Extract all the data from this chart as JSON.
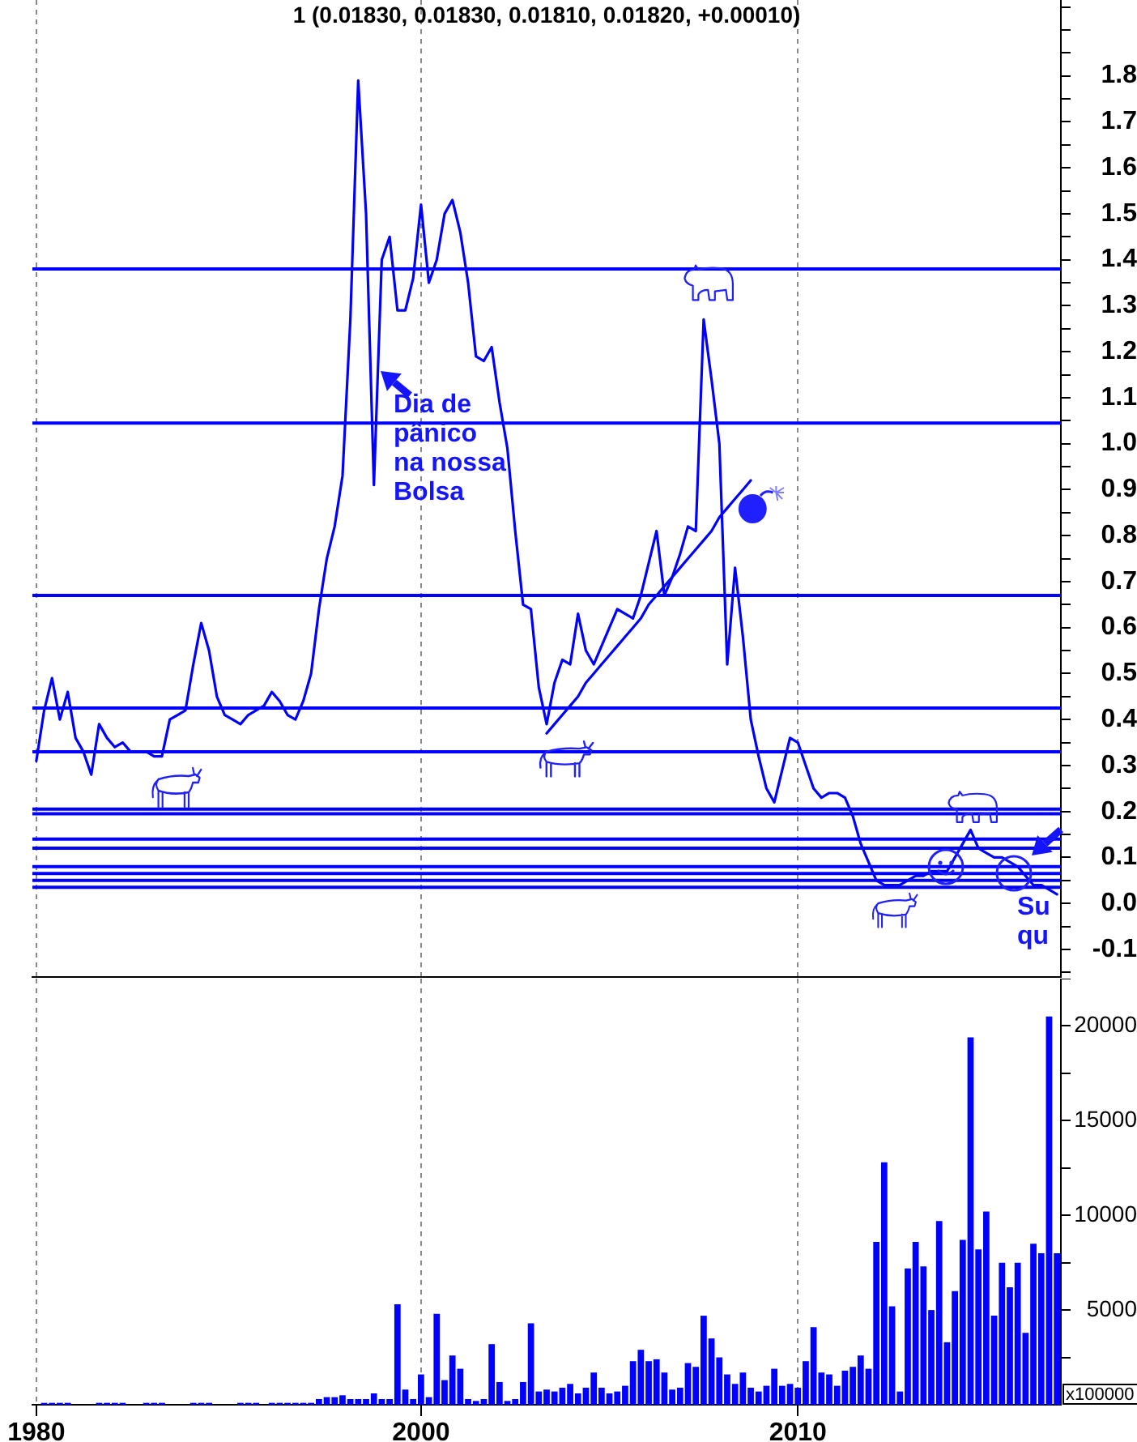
{
  "chart_data": [
    {
      "type": "line",
      "title": "1 (0.01830, 0.01830, 0.01810, 0.01820, +0.00010)",
      "categories": [
        "1980",
        null,
        null,
        null,
        null,
        null,
        null,
        null,
        null,
        null,
        null,
        null,
        null,
        null,
        null,
        null,
        null,
        null,
        null,
        null,
        null,
        null,
        null,
        null,
        null,
        null,
        null,
        null,
        null,
        null,
        null,
        null,
        null,
        null,
        null,
        null,
        null,
        null,
        null,
        null,
        null,
        null,
        null,
        null,
        null,
        null,
        null,
        null,
        null,
        "2000",
        null,
        null,
        null,
        null,
        null,
        null,
        null,
        null,
        null,
        null,
        null,
        null,
        null,
        null,
        null,
        null,
        null,
        null,
        null,
        null,
        null,
        null,
        null,
        null,
        null,
        null,
        null,
        null,
        null,
        null,
        null,
        null,
        null,
        null,
        null,
        null,
        null,
        null,
        null,
        null,
        null,
        null,
        null,
        null,
        null,
        null,
        null,
        "2010",
        null,
        null,
        null,
        null,
        null,
        null,
        null,
        null,
        null,
        null,
        null,
        null,
        null,
        null,
        null,
        null,
        null,
        null,
        null,
        null,
        null,
        null,
        null,
        null,
        null,
        null,
        null,
        null,
        null,
        null,
        null,
        null,
        null
      ],
      "ylim": [
        -0.16,
        1.965
      ],
      "yticks": [
        {
          "value": -0.15,
          "label": null
        },
        -0.1,
        {
          "value": -0.05,
          "label": null
        },
        {
          "value": 0,
          "label": "0.0"
        },
        {
          "value": 0.05,
          "label": null
        },
        0.1,
        {
          "value": 0.15,
          "label": null
        },
        0.2,
        {
          "value": 0.25,
          "label": null
        },
        0.3,
        {
          "value": 0.35,
          "label": null
        },
        0.4,
        {
          "value": 0.45,
          "label": null
        },
        0.5,
        {
          "value": 0.55,
          "label": null
        },
        0.6,
        {
          "value": 0.65,
          "label": null
        },
        0.7,
        {
          "value": 0.75,
          "label": null
        },
        0.8,
        {
          "value": 0.85,
          "label": null
        },
        0.9,
        {
          "value": 0.95,
          "label": null
        },
        {
          "value": 1,
          "label": "1.0"
        },
        {
          "value": 1.05,
          "label": null
        },
        1.1,
        {
          "value": 1.15,
          "label": null
        },
        1.2,
        {
          "value": 1.25,
          "label": null
        },
        1.3,
        {
          "value": 1.35,
          "label": null
        },
        1.4,
        {
          "value": 1.45,
          "label": null
        },
        1.5,
        {
          "value": 1.55,
          "label": null
        },
        1.6,
        {
          "value": 1.65,
          "label": null
        },
        1.7,
        {
          "value": 1.75,
          "label": null
        },
        1.8,
        {
          "value": 1.85,
          "label": null
        },
        {
          "value": 1.9,
          "label": null
        },
        {
          "value": 1.95,
          "label": null
        }
      ],
      "series": [
        {
          "color": "#0000ff",
          "values": [
            0.31,
            0.42,
            0.49,
            0.4,
            0.46,
            0.36,
            0.33,
            0.28,
            0.39,
            0.36,
            0.34,
            0.35,
            0.33,
            0.33,
            0.33,
            0.32,
            0.32,
            0.4,
            0.41,
            0.42,
            0.52,
            0.61,
            0.55,
            0.45,
            0.41,
            0.4,
            0.39,
            0.41,
            0.42,
            0.43,
            0.46,
            0.44,
            0.41,
            0.4,
            0.44,
            0.5,
            0.64,
            0.75,
            0.82,
            0.93,
            1.27,
            1.79,
            1.5,
            0.91,
            1.4,
            1.45,
            1.29,
            1.29,
            1.36,
            1.52,
            1.35,
            1.4,
            1.5,
            1.53,
            1.46,
            1.35,
            1.19,
            1.18,
            1.21,
            1.09,
            0.99,
            0.81,
            0.65,
            0.64,
            0.47,
            0.39,
            0.48,
            0.53,
            0.52,
            0.63,
            0.55,
            0.52,
            0.56,
            0.6,
            0.64,
            0.63,
            0.62,
            0.67,
            0.74,
            0.81,
            0.67,
            0.71,
            0.76,
            0.82,
            0.81,
            1.27,
            1.14,
            1,
            0.52,
            0.73,
            0.58,
            0.4,
            0.32,
            0.25,
            0.22,
            0.29,
            0.36,
            0.35,
            0.3,
            0.25,
            0.23,
            0.24,
            0.24,
            0.23,
            0.19,
            0.13,
            0.09,
            0.05,
            0.04,
            0.04,
            0.04,
            0.05,
            0.06,
            0.06,
            0.07,
            0.07,
            0.07,
            0.1,
            0.13,
            0.16,
            0.12,
            0.11,
            0.1,
            0.1,
            0.09,
            0.08,
            0.06,
            0.04,
            0.04,
            0.03,
            0.02
          ]
        },
        {
          "type": "line",
          "color": "#0000ff",
          "values": [
            null,
            null,
            null,
            null,
            null,
            null,
            null,
            null,
            null,
            null,
            null,
            null,
            null,
            null,
            null,
            null,
            null,
            null,
            null,
            null,
            null,
            null,
            null,
            null,
            null,
            null,
            null,
            null,
            null,
            null,
            null,
            null,
            null,
            null,
            null,
            null,
            null,
            null,
            null,
            null,
            null,
            null,
            null,
            null,
            null,
            null,
            null,
            null,
            null,
            null,
            null,
            null,
            null,
            null,
            null,
            null,
            null,
            null,
            null,
            null,
            null,
            null,
            null,
            null,
            null,
            0.37,
            0.39,
            0.41,
            0.43,
            0.45,
            0.48,
            0.5,
            0.52,
            0.54,
            0.56,
            0.58,
            0.6,
            0.62,
            0.65,
            0.67,
            0.69,
            0.71,
            0.73,
            0.75,
            0.77,
            0.79,
            0.81,
            0.84,
            0.86,
            0.88,
            0.9,
            0.92,
            null,
            null,
            null,
            null,
            null,
            null,
            null,
            null,
            null,
            null,
            null,
            null,
            null,
            null,
            null,
            null,
            null,
            null,
            null,
            null,
            null,
            null,
            null,
            null,
            null,
            null,
            null,
            null,
            null,
            null,
            null,
            null,
            null,
            null,
            null,
            null,
            null,
            null,
            null
          ]
        }
      ],
      "ref_lines": [
        {
          "axis": "y",
          "value": 1.38,
          "color": "#0000ff"
        },
        {
          "axis": "y",
          "value": 1.045,
          "color": "#0000ff"
        },
        {
          "axis": "y",
          "value": 0.67,
          "color": "#0000ff"
        },
        {
          "axis": "y",
          "value": 0.425,
          "color": "#0000ff"
        },
        {
          "axis": "y",
          "value": 0.33,
          "color": "#0000ff"
        },
        {
          "axis": "y",
          "value": 0.205,
          "color": "#0000ff"
        },
        {
          "axis": "y",
          "value": 0.195,
          "color": "#0000ff"
        },
        {
          "axis": "y",
          "value": 0.14,
          "color": "#0000ff"
        },
        {
          "axis": "y",
          "value": 0.12,
          "color": "#0000ff"
        },
        {
          "axis": "y",
          "value": 0.08,
          "color": "#0000ff"
        },
        {
          "axis": "y",
          "value": 0.065,
          "color": "#0000ff"
        },
        {
          "axis": "y",
          "value": 0.05,
          "color": "#0000ff"
        },
        {
          "axis": "y",
          "value": 0.035,
          "color": "#0000ff"
        }
      ],
      "annotations": [
        "Dia de\npânico\nna nossa\nBolsa",
        "Su\nqu"
      ],
      "grid": "x",
      "tick_labels": "y"
    },
    {
      "type": "bar",
      "categories": [
        "1980",
        null,
        null,
        null,
        null,
        null,
        null,
        null,
        null,
        null,
        null,
        null,
        null,
        null,
        null,
        null,
        null,
        null,
        null,
        null,
        null,
        null,
        null,
        null,
        null,
        null,
        null,
        null,
        null,
        null,
        null,
        null,
        null,
        null,
        null,
        null,
        null,
        null,
        null,
        null,
        null,
        null,
        null,
        null,
        null,
        null,
        null,
        null,
        null,
        "2000",
        null,
        null,
        null,
        null,
        null,
        null,
        null,
        null,
        null,
        null,
        null,
        null,
        null,
        null,
        null,
        null,
        null,
        null,
        null,
        null,
        null,
        null,
        null,
        null,
        null,
        null,
        null,
        null,
        null,
        null,
        null,
        null,
        null,
        null,
        null,
        null,
        null,
        null,
        null,
        null,
        null,
        null,
        null,
        null,
        null,
        null,
        null,
        "2010",
        null,
        null,
        null,
        null,
        null,
        null,
        null,
        null,
        null,
        null,
        null,
        null,
        null,
        null,
        null,
        null,
        null,
        null,
        null,
        null,
        null,
        null,
        null,
        null,
        null,
        null,
        null,
        null,
        null,
        null,
        null,
        null,
        null
      ],
      "values": [
        null,
        100,
        100,
        100,
        100,
        null,
        null,
        null,
        100,
        100,
        100,
        100,
        null,
        null,
        100,
        100,
        100,
        null,
        null,
        null,
        100,
        100,
        100,
        null,
        null,
        null,
        100,
        100,
        100,
        null,
        100,
        100,
        100,
        100,
        100,
        100,
        300,
        400,
        400,
        500,
        300,
        300,
        300,
        600,
        300,
        300,
        5300,
        800,
        300,
        1600,
        400,
        4800,
        1300,
        2600,
        1900,
        300,
        200,
        300,
        3200,
        1200,
        200,
        300,
        1200,
        4300,
        700,
        800,
        700,
        900,
        1100,
        600,
        900,
        1700,
        900,
        600,
        700,
        1000,
        2300,
        2900,
        2300,
        2400,
        1700,
        800,
        900,
        2200,
        2000,
        4700,
        3500,
        2500,
        1600,
        1100,
        1700,
        900,
        700,
        1000,
        1900,
        1000,
        1100,
        900,
        2300,
        4100,
        1700,
        1600,
        1000,
        1800,
        2000,
        2600,
        1900,
        8600,
        12800,
        5200,
        700,
        7200,
        8600,
        7300,
        5000,
        9700,
        3300,
        6000,
        8700,
        19400,
        8200,
        10200,
        4700,
        7500,
        6200,
        7500,
        3800,
        8500,
        8000,
        20500,
        8000
      ],
      "color": "#0000ff",
      "ylim": [
        0,
        22500
      ],
      "yticks": [
        {
          "value": 2500,
          "label": null
        },
        5000,
        {
          "value": 7500,
          "label": null
        },
        10000,
        {
          "value": 12500,
          "label": null
        },
        15000,
        {
          "value": 17500,
          "label": null
        },
        20000,
        {
          "value": 22500,
          "label": null
        }
      ],
      "ylabel": "x100000",
      "grid": "x"
    }
  ]
}
